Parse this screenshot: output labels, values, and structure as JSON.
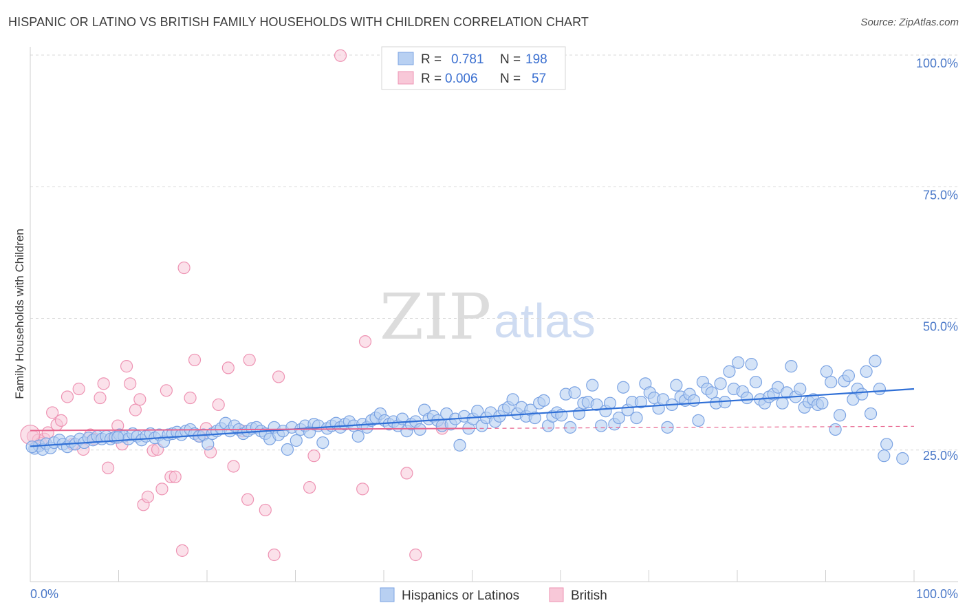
{
  "header": {
    "title": "HISPANIC OR LATINO VS BRITISH FAMILY HOUSEHOLDS WITH CHILDREN CORRELATION CHART",
    "source": "Source: ZipAtlas.com"
  },
  "watermark": {
    "zip": "ZIP",
    "atlas": "atlas"
  },
  "colors": {
    "blue_fill": "#b8d0f2",
    "blue_stroke": "#7ba3e3",
    "blue_line": "#2f6fd6",
    "pink_fill": "#f8c8d8",
    "pink_stroke": "#ee93b3",
    "pink_line": "#e8648e",
    "grid": "#d8d8d8",
    "axis_label": "#4a78c8"
  },
  "legend": {
    "rows": [
      {
        "r_label": "R =",
        "r_value": "0.781",
        "n_label": "N =",
        "n_value": "198"
      },
      {
        "r_label": "R =",
        "r_value": "0.006",
        "n_label": "N =",
        "n_value": "57"
      }
    ]
  },
  "chart_data": {
    "type": "scatter",
    "title": "HISPANIC OR LATINO VS BRITISH FAMILY HOUSEHOLDS WITH CHILDREN CORRELATION CHART",
    "xlabel": "",
    "ylabel": "Family Households with Children",
    "xlim": [
      0,
      100
    ],
    "ylim": [
      0,
      100
    ],
    "x_tick_labels": [
      "0.0%",
      "100.0%"
    ],
    "y_tick_labels": [
      "25.0%",
      "50.0%",
      "75.0%",
      "100.0%"
    ],
    "y_ticks": [
      25,
      50,
      75,
      100
    ],
    "series": [
      {
        "name": "Hispanics or Latinos",
        "R": 0.781,
        "N": 198,
        "trend": {
          "x": [
            0,
            100
          ],
          "y": [
            25.7,
            36.6
          ]
        },
        "points": [
          [
            0.5,
            25.3
          ],
          [
            1,
            25.8
          ],
          [
            1.4,
            25.1
          ],
          [
            1.8,
            26.2
          ],
          [
            2.3,
            25.4
          ],
          [
            2.7,
            26.4
          ],
          [
            3.3,
            26.9
          ],
          [
            3.7,
            26.1
          ],
          [
            4.2,
            25.6
          ],
          [
            4.6,
            26.6
          ],
          [
            5.1,
            26.1
          ],
          [
            5.6,
            27.1
          ],
          [
            6.1,
            26.4
          ],
          [
            6.6,
            27.3
          ],
          [
            7.1,
            26.9
          ],
          [
            7.6,
            27.6
          ],
          [
            8.1,
            27.1
          ],
          [
            8.6,
            27.6
          ],
          [
            9.1,
            27.1
          ],
          [
            9.6,
            27.4
          ],
          [
            10.1,
            27.9
          ],
          [
            10.6,
            27.6
          ],
          [
            11.1,
            27.1
          ],
          [
            11.6,
            28.1
          ],
          [
            12.1,
            27.6
          ],
          [
            12.6,
            26.9
          ],
          [
            13.1,
            27.6
          ],
          [
            13.6,
            28.1
          ],
          [
            14.1,
            27.3
          ],
          [
            14.6,
            27.9
          ],
          [
            15.1,
            26.6
          ],
          [
            15.6,
            27.9
          ],
          [
            16.1,
            28.1
          ],
          [
            16.6,
            28.4
          ],
          [
            17.1,
            27.9
          ],
          [
            17.6,
            28.6
          ],
          [
            18.1,
            28.9
          ],
          [
            18.6,
            28.1
          ],
          [
            19.1,
            27.6
          ],
          [
            19.6,
            27.9
          ],
          [
            20.1,
            26.1
          ],
          [
            20.6,
            28.1
          ],
          [
            21.1,
            28.6
          ],
          [
            21.6,
            29.1
          ],
          [
            22.1,
            30.1
          ],
          [
            22.6,
            28.6
          ],
          [
            23.1,
            29.6
          ],
          [
            23.6,
            28.9
          ],
          [
            24.1,
            28.1
          ],
          [
            24.6,
            28.6
          ],
          [
            25.1,
            29.1
          ],
          [
            25.6,
            29.3
          ],
          [
            26.1,
            28.6
          ],
          [
            26.6,
            28.1
          ],
          [
            27.1,
            27.1
          ],
          [
            27.6,
            29.3
          ],
          [
            28.1,
            27.9
          ],
          [
            28.6,
            28.6
          ],
          [
            29.1,
            25.1
          ],
          [
            29.6,
            29.3
          ],
          [
            30.1,
            26.8
          ],
          [
            30.6,
            28.9
          ],
          [
            31.1,
            29.6
          ],
          [
            31.6,
            28.4
          ],
          [
            32.1,
            29.9
          ],
          [
            32.6,
            29.6
          ],
          [
            33.1,
            26.4
          ],
          [
            33.6,
            29.1
          ],
          [
            34.1,
            29.6
          ],
          [
            34.6,
            30.1
          ],
          [
            35.1,
            29.3
          ],
          [
            35.6,
            29.9
          ],
          [
            36.1,
            30.4
          ],
          [
            36.6,
            29.6
          ],
          [
            37.1,
            27.6
          ],
          [
            37.6,
            29.9
          ],
          [
            38.1,
            29.3
          ],
          [
            38.6,
            30.6
          ],
          [
            39.1,
            31.1
          ],
          [
            39.6,
            31.9
          ],
          [
            40.1,
            30.6
          ],
          [
            40.6,
            29.9
          ],
          [
            41.1,
            30.4
          ],
          [
            41.6,
            29.6
          ],
          [
            42.1,
            30.9
          ],
          [
            42.6,
            28.6
          ],
          [
            43.1,
            29.9
          ],
          [
            43.6,
            30.4
          ],
          [
            44.1,
            28.9
          ],
          [
            44.6,
            32.6
          ],
          [
            45.1,
            30.9
          ],
          [
            45.6,
            31.4
          ],
          [
            46.1,
            30.6
          ],
          [
            46.6,
            29.6
          ],
          [
            47.1,
            31.9
          ],
          [
            47.6,
            29.9
          ],
          [
            48.1,
            30.9
          ],
          [
            48.6,
            25.9
          ],
          [
            49.1,
            31.4
          ],
          [
            49.6,
            29.1
          ],
          [
            50.1,
            30.9
          ],
          [
            50.6,
            32.4
          ],
          [
            51.1,
            29.6
          ],
          [
            51.6,
            31.1
          ],
          [
            52.1,
            32.1
          ],
          [
            52.6,
            30.4
          ],
          [
            53.1,
            31.4
          ],
          [
            53.6,
            32.6
          ],
          [
            54.1,
            33.1
          ],
          [
            54.6,
            34.6
          ],
          [
            55.1,
            31.9
          ],
          [
            55.6,
            33.1
          ],
          [
            56.1,
            31.4
          ],
          [
            56.6,
            32.6
          ],
          [
            57.1,
            31.1
          ],
          [
            57.6,
            33.9
          ],
          [
            58.1,
            34.4
          ],
          [
            58.6,
            29.6
          ],
          [
            59.1,
            31.4
          ],
          [
            59.6,
            32.1
          ],
          [
            60.1,
            31.6
          ],
          [
            60.6,
            35.6
          ],
          [
            61.1,
            29.3
          ],
          [
            61.6,
            35.9
          ],
          [
            62.1,
            31.9
          ],
          [
            62.6,
            33.9
          ],
          [
            63.1,
            34.1
          ],
          [
            63.6,
            37.3
          ],
          [
            64.1,
            33.6
          ],
          [
            64.6,
            29.6
          ],
          [
            65.1,
            32.4
          ],
          [
            65.6,
            33.9
          ],
          [
            66.1,
            29.9
          ],
          [
            66.6,
            31.1
          ],
          [
            67.1,
            36.9
          ],
          [
            67.6,
            32.6
          ],
          [
            68.1,
            34.1
          ],
          [
            68.6,
            31.1
          ],
          [
            69.1,
            34.1
          ],
          [
            69.6,
            37.6
          ],
          [
            70.1,
            35.9
          ],
          [
            70.6,
            34.9
          ],
          [
            71.1,
            32.9
          ],
          [
            71.6,
            34.6
          ],
          [
            72.1,
            29.3
          ],
          [
            72.6,
            33.6
          ],
          [
            73.1,
            37.3
          ],
          [
            73.6,
            35.1
          ],
          [
            74.1,
            34.4
          ],
          [
            74.6,
            35.6
          ],
          [
            75.1,
            34.4
          ],
          [
            75.6,
            30.6
          ],
          [
            76.1,
            37.9
          ],
          [
            76.6,
            36.6
          ],
          [
            77.1,
            35.9
          ],
          [
            77.6,
            33.9
          ],
          [
            78.1,
            37.6
          ],
          [
            78.6,
            34.1
          ],
          [
            79.1,
            39.9
          ],
          [
            79.6,
            36.6
          ],
          [
            80.1,
            41.6
          ],
          [
            80.6,
            36.1
          ],
          [
            81.1,
            34.9
          ],
          [
            81.6,
            41.3
          ],
          [
            82.1,
            37.9
          ],
          [
            82.6,
            34.6
          ],
          [
            83.1,
            33.9
          ],
          [
            83.6,
            35.1
          ],
          [
            84.1,
            35.6
          ],
          [
            84.6,
            36.9
          ],
          [
            85.1,
            33.9
          ],
          [
            85.6,
            35.9
          ],
          [
            86.1,
            40.9
          ],
          [
            86.6,
            35.1
          ],
          [
            87.1,
            36.6
          ],
          [
            87.6,
            33.1
          ],
          [
            88.1,
            34.1
          ],
          [
            88.6,
            34.6
          ],
          [
            89.1,
            33.6
          ],
          [
            89.6,
            33.9
          ],
          [
            90.1,
            39.9
          ],
          [
            90.6,
            37.9
          ],
          [
            91.1,
            28.9
          ],
          [
            91.6,
            31.6
          ],
          [
            92.1,
            38.1
          ],
          [
            92.6,
            39.1
          ],
          [
            93.1,
            34.6
          ],
          [
            93.6,
            36.6
          ],
          [
            94.1,
            35.6
          ],
          [
            94.6,
            39.9
          ],
          [
            95.1,
            31.9
          ],
          [
            95.6,
            41.9
          ],
          [
            96.1,
            36.6
          ],
          [
            96.6,
            23.9
          ],
          [
            96.9,
            26.1
          ],
          [
            98.7,
            23.4
          ],
          [
            0.2,
            25.6
          ],
          [
            9.9,
            27.4
          ]
        ]
      },
      {
        "name": "British",
        "R": 0.006,
        "N": 57,
        "trend": {
          "x": [
            0,
            100
          ],
          "y": [
            28.7,
            29.5
          ]
        },
        "points": [
          [
            0.3,
            27.6
          ],
          [
            0.9,
            26.9
          ],
          [
            1.2,
            26.3
          ],
          [
            1.6,
            27.1
          ],
          [
            2.0,
            28.3
          ],
          [
            2.5,
            32.1
          ],
          [
            3.0,
            29.8
          ],
          [
            3.5,
            30.6
          ],
          [
            4.2,
            35.1
          ],
          [
            4.8,
            26.1
          ],
          [
            5.5,
            36.6
          ],
          [
            6.0,
            25.1
          ],
          [
            6.8,
            27.9
          ],
          [
            7.3,
            27.1
          ],
          [
            7.9,
            34.9
          ],
          [
            8.3,
            37.6
          ],
          [
            8.8,
            21.6
          ],
          [
            9.5,
            27.4
          ],
          [
            9.9,
            29.6
          ],
          [
            10.4,
            26.1
          ],
          [
            10.9,
            40.9
          ],
          [
            11.3,
            37.6
          ],
          [
            11.9,
            32.6
          ],
          [
            12.4,
            34.6
          ],
          [
            12.8,
            14.6
          ],
          [
            13.3,
            16.1
          ],
          [
            13.9,
            24.9
          ],
          [
            14.4,
            25.1
          ],
          [
            14.9,
            17.6
          ],
          [
            15.4,
            36.3
          ],
          [
            15.9,
            19.9
          ],
          [
            16.4,
            19.9
          ],
          [
            17.2,
            5.9
          ],
          [
            17.4,
            59.6
          ],
          [
            18.1,
            34.9
          ],
          [
            18.6,
            42.1
          ],
          [
            19.2,
            27.6
          ],
          [
            19.9,
            29.1
          ],
          [
            20.4,
            24.6
          ],
          [
            21.3,
            33.6
          ],
          [
            22.4,
            40.6
          ],
          [
            23.0,
            21.9
          ],
          [
            24.0,
            28.6
          ],
          [
            24.6,
            15.6
          ],
          [
            24.8,
            42.1
          ],
          [
            26.6,
            13.6
          ],
          [
            27.6,
            5.1
          ],
          [
            28.1,
            38.9
          ],
          [
            31.6,
            17.9
          ],
          [
            32.1,
            23.9
          ],
          [
            35.1,
            99.9
          ],
          [
            37.6,
            17.6
          ],
          [
            37.9,
            45.6
          ],
          [
            42.6,
            20.6
          ],
          [
            43.6,
            5.1
          ],
          [
            46.6,
            29.1
          ],
          [
            0.0,
            27.9
          ]
        ]
      }
    ]
  },
  "bottom_legend": {
    "items": [
      {
        "label": "Hispanics or Latinos"
      },
      {
        "label": "British"
      }
    ]
  }
}
